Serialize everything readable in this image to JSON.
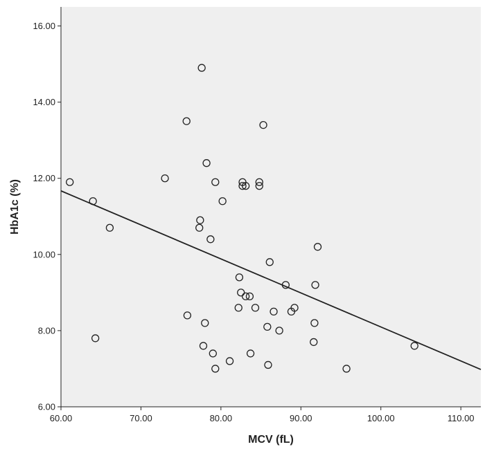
{
  "chart_data": {
    "type": "scatter",
    "title": "",
    "xlabel": "MCV (fL)",
    "ylabel": "HbA1c (%)",
    "xlim": [
      60,
      112.5
    ],
    "ylim": [
      6,
      16.5
    ],
    "xticks": [
      "60.00",
      "70.00",
      "80.00",
      "90.00",
      "100.00",
      "110.00"
    ],
    "yticks": [
      "6.00",
      "8.00",
      "10.00",
      "12.00",
      "14.00",
      "16.00"
    ],
    "grid": false,
    "background": "#efefef",
    "marker": "open-circle",
    "points": [
      [
        61.1,
        11.9
      ],
      [
        64.0,
        11.4
      ],
      [
        64.3,
        7.8
      ],
      [
        66.1,
        10.7
      ],
      [
        73.0,
        12.0
      ],
      [
        75.7,
        13.5
      ],
      [
        75.8,
        8.4
      ],
      [
        77.4,
        10.9
      ],
      [
        77.3,
        10.7
      ],
      [
        77.6,
        14.9
      ],
      [
        77.8,
        7.6
      ],
      [
        78.0,
        8.2
      ],
      [
        78.2,
        12.4
      ],
      [
        78.7,
        10.4
      ],
      [
        79.0,
        7.4
      ],
      [
        79.3,
        11.9
      ],
      [
        79.3,
        7.0
      ],
      [
        80.2,
        11.4
      ],
      [
        81.1,
        7.2
      ],
      [
        82.2,
        8.6
      ],
      [
        82.3,
        9.4
      ],
      [
        82.5,
        9.0
      ],
      [
        82.7,
        11.9
      ],
      [
        82.7,
        11.8
      ],
      [
        83.1,
        11.8
      ],
      [
        83.1,
        8.9
      ],
      [
        83.6,
        8.9
      ],
      [
        83.7,
        7.4
      ],
      [
        84.3,
        8.6
      ],
      [
        84.8,
        11.9
      ],
      [
        84.8,
        11.8
      ],
      [
        85.3,
        13.4
      ],
      [
        85.8,
        8.1
      ],
      [
        85.9,
        7.1
      ],
      [
        86.1,
        9.8
      ],
      [
        86.6,
        8.5
      ],
      [
        87.3,
        8.0
      ],
      [
        88.1,
        9.2
      ],
      [
        88.8,
        8.5
      ],
      [
        89.2,
        8.6
      ],
      [
        91.7,
        8.2
      ],
      [
        91.6,
        7.7
      ],
      [
        91.8,
        9.2
      ],
      [
        92.1,
        10.2
      ],
      [
        95.7,
        7.0
      ],
      [
        104.2,
        7.6
      ]
    ],
    "fit_line": {
      "x": [
        60,
        112.5
      ],
      "y": [
        11.67,
        6.98
      ]
    }
  }
}
